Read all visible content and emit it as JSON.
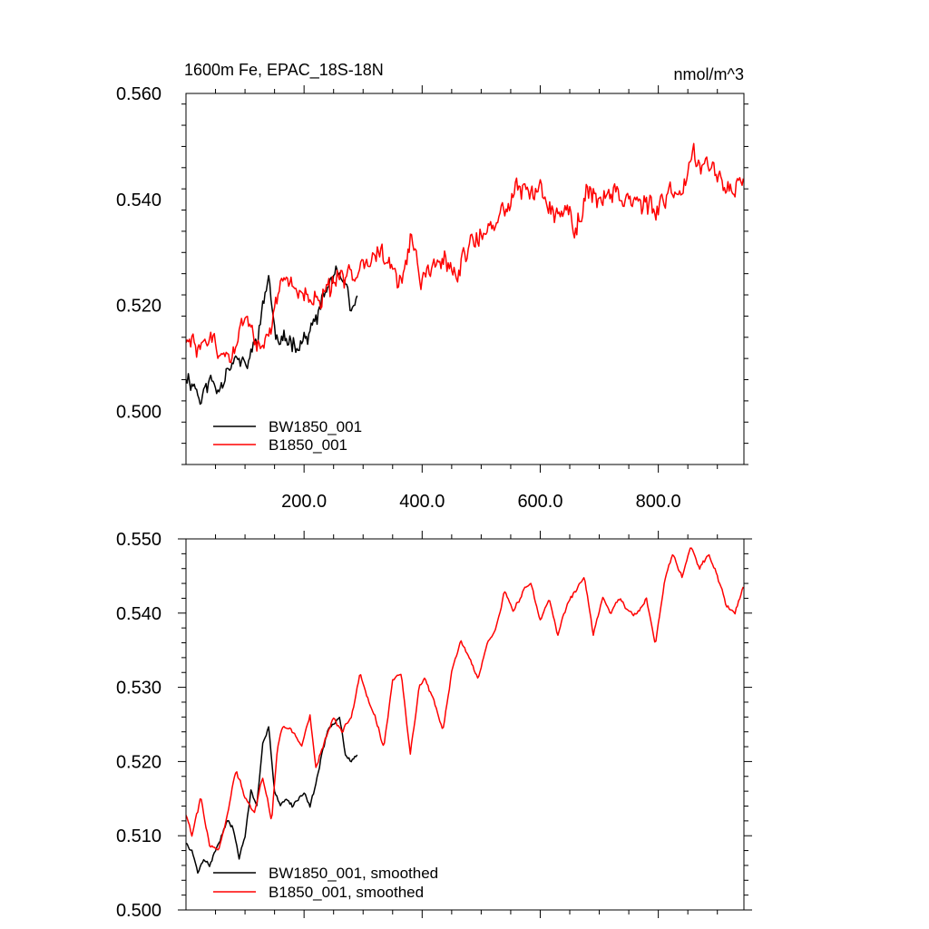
{
  "chart_data": [
    {
      "type": "line",
      "title": "1600m Fe, EPAC_18S-18N",
      "units_label": "nmol/m^3",
      "xlim": [
        0,
        945
      ],
      "ylim": [
        0.49,
        0.56
      ],
      "xticks": [
        200,
        400,
        600,
        800
      ],
      "xtick_labels": [
        "200.0",
        "400.0",
        "600.0",
        "800.0"
      ],
      "yticks": [
        0.5,
        0.52,
        0.54,
        0.56
      ],
      "ytick_labels": [
        "0.500",
        "0.520",
        "0.540",
        "0.560"
      ],
      "legend_position": "bottom-left",
      "series": [
        {
          "name": "BW1850_001",
          "color": "#000000",
          "noise": 0.0025,
          "seed": 11,
          "x": [
            0,
            15,
            25,
            40,
            55,
            70,
            85,
            100,
            115,
            130,
            140,
            150,
            160,
            175,
            190,
            205,
            220,
            235,
            250,
            260,
            270,
            280,
            290
          ],
          "values": [
            0.507,
            0.505,
            0.502,
            0.506,
            0.504,
            0.509,
            0.51,
            0.508,
            0.512,
            0.519,
            0.526,
            0.515,
            0.512,
            0.514,
            0.513,
            0.514,
            0.517,
            0.522,
            0.526,
            0.525,
            0.523,
            0.518,
            0.522
          ]
        },
        {
          "name": "B1850_001",
          "color": "#ff0000",
          "noise": 0.0032,
          "seed": 29,
          "x": [
            0,
            20,
            40,
            60,
            80,
            100,
            120,
            140,
            160,
            190,
            220,
            250,
            280,
            300,
            330,
            360,
            380,
            400,
            420,
            440,
            460,
            480,
            500,
            520,
            540,
            560,
            580,
            600,
            620,
            640,
            660,
            680,
            700,
            720,
            740,
            760,
            780,
            800,
            820,
            840,
            860,
            880,
            900,
            920,
            945
          ],
          "values": [
            0.513,
            0.512,
            0.514,
            0.51,
            0.511,
            0.518,
            0.514,
            0.512,
            0.524,
            0.524,
            0.52,
            0.524,
            0.525,
            0.53,
            0.53,
            0.524,
            0.532,
            0.524,
            0.528,
            0.528,
            0.525,
            0.532,
            0.534,
            0.533,
            0.539,
            0.542,
            0.541,
            0.543,
            0.538,
            0.538,
            0.535,
            0.541,
            0.54,
            0.542,
            0.541,
            0.54,
            0.539,
            0.537,
            0.541,
            0.542,
            0.549,
            0.547,
            0.545,
            0.542,
            0.543
          ]
        }
      ]
    },
    {
      "type": "line",
      "title": "",
      "xlim": [
        0,
        945
      ],
      "ylim": [
        0.5,
        0.55
      ],
      "xticks": [
        200,
        400,
        600,
        800
      ],
      "xtick_labels": [],
      "yticks": [
        0.5,
        0.51,
        0.52,
        0.53,
        0.54,
        0.55
      ],
      "ytick_labels": [
        "0.500",
        "0.510",
        "0.520",
        "0.530",
        "0.540",
        "0.550"
      ],
      "legend_position": "bottom-left",
      "series": [
        {
          "name": "BW1850_001, smoothed",
          "color": "#000000",
          "noise": 0,
          "seed": 0,
          "x": [
            0,
            10,
            20,
            30,
            40,
            50,
            60,
            70,
            80,
            90,
            100,
            110,
            120,
            130,
            140,
            150,
            160,
            170,
            180,
            190,
            200,
            210,
            220,
            230,
            240,
            250,
            260,
            270,
            280,
            290
          ],
          "values": [
            0.509,
            0.508,
            0.505,
            0.507,
            0.506,
            0.508,
            0.51,
            0.512,
            0.511,
            0.507,
            0.51,
            0.516,
            0.514,
            0.522,
            0.525,
            0.516,
            0.514,
            0.515,
            0.514,
            0.515,
            0.516,
            0.514,
            0.517,
            0.521,
            0.524,
            0.525,
            0.526,
            0.521,
            0.52,
            0.521
          ]
        },
        {
          "name": "B1850_001, smoothed",
          "color": "#ff0000",
          "noise": 0,
          "seed": 0,
          "x": [
            0,
            10,
            25,
            40,
            55,
            70,
            85,
            100,
            115,
            130,
            145,
            155,
            165,
            180,
            195,
            210,
            220,
            235,
            250,
            265,
            280,
            295,
            310,
            320,
            335,
            350,
            365,
            380,
            395,
            405,
            420,
            435,
            450,
            465,
            480,
            495,
            510,
            525,
            540,
            555,
            570,
            585,
            600,
            615,
            630,
            645,
            660,
            675,
            690,
            705,
            720,
            735,
            750,
            765,
            780,
            795,
            810,
            825,
            840,
            855,
            870,
            885,
            900,
            915,
            930,
            945
          ],
          "values": [
            0.513,
            0.51,
            0.515,
            0.509,
            0.508,
            0.513,
            0.519,
            0.515,
            0.513,
            0.518,
            0.512,
            0.522,
            0.525,
            0.524,
            0.522,
            0.526,
            0.519,
            0.523,
            0.526,
            0.524,
            0.526,
            0.532,
            0.528,
            0.526,
            0.522,
            0.531,
            0.532,
            0.521,
            0.53,
            0.531,
            0.528,
            0.524,
            0.532,
            0.536,
            0.534,
            0.531,
            0.536,
            0.538,
            0.543,
            0.54,
            0.543,
            0.544,
            0.539,
            0.542,
            0.537,
            0.541,
            0.543,
            0.545,
            0.537,
            0.542,
            0.54,
            0.542,
            0.54,
            0.54,
            0.542,
            0.536,
            0.544,
            0.548,
            0.545,
            0.549,
            0.546,
            0.548,
            0.545,
            0.541,
            0.54,
            0.544
          ]
        }
      ]
    }
  ]
}
